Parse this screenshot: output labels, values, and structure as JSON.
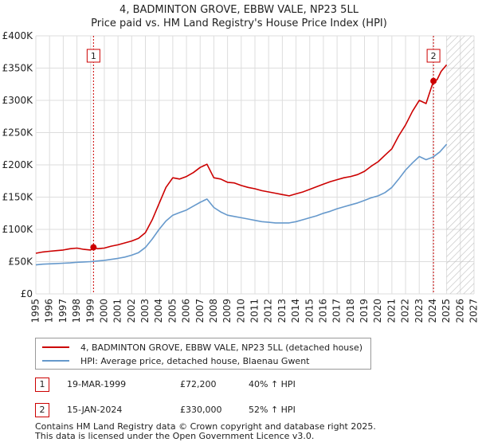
{
  "chart_data": {
    "type": "line",
    "title": "4, BADMINTON GROVE, EBBW VALE, NP23 5LL",
    "subtitle": "Price paid vs. HM Land Registry's House Price Index (HPI)",
    "xlim": [
      1995,
      2027
    ],
    "ylim": [
      0,
      400000
    ],
    "x_ticks": [
      "1995",
      "1996",
      "1997",
      "1998",
      "1999",
      "2000",
      "2001",
      "2002",
      "2003",
      "2004",
      "2005",
      "2006",
      "2007",
      "2008",
      "2009",
      "2010",
      "2011",
      "2012",
      "2013",
      "2014",
      "2015",
      "2016",
      "2017",
      "2018",
      "2019",
      "2020",
      "2021",
      "2022",
      "2023",
      "2024",
      "2025",
      "2026",
      "2027"
    ],
    "y_ticks": [
      {
        "value": 0,
        "label": "£0"
      },
      {
        "value": 50000,
        "label": "£50K"
      },
      {
        "value": 100000,
        "label": "£100K"
      },
      {
        "value": 150000,
        "label": "£150K"
      },
      {
        "value": 200000,
        "label": "£200K"
      },
      {
        "value": 250000,
        "label": "£250K"
      },
      {
        "value": 300000,
        "label": "£300K"
      },
      {
        "value": 350000,
        "label": "£350K"
      },
      {
        "value": 400000,
        "label": "£400K"
      }
    ],
    "hatch_from": 2025.0,
    "series": [
      {
        "name": "4, BADMINTON GROVE, EBBW VALE, NP23 5LL (detached house)",
        "color": "#cc0000",
        "x": [
          1995.0,
          1995.5,
          1996.0,
          1996.5,
          1997.0,
          1997.5,
          1998.0,
          1998.5,
          1999.0,
          1999.21,
          1999.5,
          2000.0,
          2000.5,
          2001.0,
          2001.5,
          2002.0,
          2002.5,
          2003.0,
          2003.5,
          2004.0,
          2004.5,
          2005.0,
          2005.5,
          2006.0,
          2006.5,
          2007.0,
          2007.5,
          2008.0,
          2008.5,
          2009.0,
          2009.5,
          2010.0,
          2010.5,
          2011.0,
          2011.5,
          2012.0,
          2012.5,
          2013.0,
          2013.5,
          2014.0,
          2014.5,
          2015.0,
          2015.5,
          2016.0,
          2016.5,
          2017.0,
          2017.5,
          2018.0,
          2018.5,
          2019.0,
          2019.5,
          2020.0,
          2020.5,
          2021.0,
          2021.5,
          2022.0,
          2022.5,
          2023.0,
          2023.5,
          2024.04,
          2024.3,
          2024.6,
          2025.0
        ],
        "y": [
          63000,
          65000,
          66000,
          67000,
          68000,
          70000,
          71000,
          69000,
          68000,
          72200,
          70000,
          71000,
          74000,
          76000,
          79000,
          82000,
          86000,
          95000,
          115000,
          140000,
          165000,
          180000,
          178000,
          182000,
          188000,
          196000,
          201000,
          180000,
          178000,
          173000,
          172000,
          168000,
          165000,
          163000,
          160000,
          158000,
          156000,
          154000,
          152000,
          155000,
          158000,
          162000,
          166000,
          170000,
          174000,
          177000,
          180000,
          182000,
          185000,
          190000,
          198000,
          205000,
          215000,
          225000,
          245000,
          262000,
          283000,
          300000,
          295000,
          330000,
          332000,
          345000,
          355000
        ]
      },
      {
        "name": "HPI: Average price, detached house, Blaenau Gwent",
        "color": "#6699cc",
        "x": [
          1995.0,
          1995.5,
          1996.0,
          1996.5,
          1997.0,
          1997.5,
          1998.0,
          1998.5,
          1999.0,
          1999.5,
          2000.0,
          2000.5,
          2001.0,
          2001.5,
          2002.0,
          2002.5,
          2003.0,
          2003.5,
          2004.0,
          2004.5,
          2005.0,
          2005.5,
          2006.0,
          2006.5,
          2007.0,
          2007.5,
          2008.0,
          2008.5,
          2009.0,
          2009.5,
          2010.0,
          2010.5,
          2011.0,
          2011.5,
          2012.0,
          2012.5,
          2013.0,
          2013.5,
          2014.0,
          2014.5,
          2015.0,
          2015.5,
          2016.0,
          2016.5,
          2017.0,
          2017.5,
          2018.0,
          2018.5,
          2019.0,
          2019.5,
          2020.0,
          2020.5,
          2021.0,
          2021.5,
          2022.0,
          2022.5,
          2023.0,
          2023.5,
          2024.0,
          2024.5,
          2025.0
        ],
        "y": [
          45000,
          46000,
          46500,
          47000,
          47500,
          48000,
          49000,
          49500,
          50000,
          51000,
          52000,
          53500,
          55000,
          57000,
          60000,
          64000,
          72000,
          85000,
          100000,
          113000,
          122000,
          126000,
          130000,
          136000,
          142000,
          147000,
          134000,
          127000,
          122000,
          120000,
          118000,
          116000,
          114000,
          112000,
          111000,
          110000,
          110000,
          110000,
          112000,
          115000,
          118000,
          121000,
          125000,
          128000,
          132000,
          135000,
          138000,
          141000,
          145000,
          149000,
          152000,
          157000,
          165000,
          178000,
          192000,
          203000,
          213000,
          208000,
          212000,
          220000,
          232000
        ]
      }
    ],
    "annotations": [
      {
        "label": "1",
        "x": 1999.21,
        "y": 72200
      },
      {
        "label": "2",
        "x": 2024.04,
        "y": 330000
      }
    ]
  },
  "legend": {
    "property_label": "4, BADMINTON GROVE, EBBW VALE, NP23 5LL (detached house)",
    "hpi_label": "HPI: Average price, detached house, Blaenau Gwent"
  },
  "sales": [
    {
      "num": "1",
      "date": "19-MAR-1999",
      "price": "£72,200",
      "hpi": "40% ↑ HPI"
    },
    {
      "num": "2",
      "date": "15-JAN-2024",
      "price": "£330,000",
      "hpi": "52% ↑ HPI"
    }
  ],
  "footer": {
    "line1": "Contains HM Land Registry data © Crown copyright and database right 2025.",
    "line2": "This data is licensed under the Open Government Licence v3.0."
  },
  "colors": {
    "property": "#cc0000",
    "hpi": "#6699cc",
    "grid": "#dddddd",
    "plot_bg": "#ffffff"
  }
}
